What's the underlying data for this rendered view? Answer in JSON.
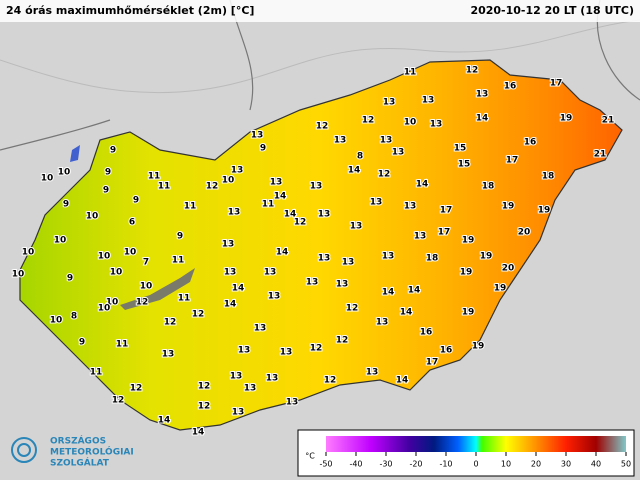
{
  "header": {
    "title": "24 órás maximumhőmérséklet (2m) [°C]",
    "timestamp": "2020-10-12 20 LT (18 UTC)"
  },
  "stations": [
    11,
    12,
    16,
    17,
    13,
    13,
    13,
    12,
    12,
    10,
    13,
    14,
    19,
    21,
    13,
    9,
    13,
    13,
    15,
    16,
    9,
    8,
    13,
    15,
    17,
    21,
    10,
    10,
    9,
    11,
    13,
    14,
    12,
    18,
    18,
    9,
    11,
    12,
    10,
    13,
    13,
    14,
    9,
    9,
    11,
    14,
    11,
    13,
    13,
    17,
    19,
    19,
    10,
    13,
    14,
    13,
    13,
    12,
    10,
    6,
    9,
    13,
    17,
    19,
    20,
    10,
    13,
    14,
    13,
    19,
    10,
    10,
    7,
    11,
    13,
    13,
    20,
    9,
    10,
    13,
    13,
    18,
    19,
    10,
    10,
    14,
    13,
    13,
    13,
    14,
    14,
    19,
    10,
    12,
    11,
    10,
    14,
    12,
    14,
    19,
    10,
    8,
    12,
    12,
    13,
    9,
    11,
    13,
    12,
    12,
    16,
    16,
    13,
    13,
    13,
    17,
    19,
    11,
    13,
    13,
    12,
    13,
    14,
    12,
    12,
    13,
    12,
    12,
    13,
    13,
    14,
    14
  ],
  "logo": [
    "ORSZÁGOS",
    "METEOROLÓGIAI",
    "SZOLGÁLAT"
  ],
  "legend": {
    "unit": "°C",
    "lim": [
      -50,
      50
    ],
    "ticks": [
      -50,
      -40,
      -30,
      -20,
      -10,
      0,
      10,
      20,
      30,
      40,
      50
    ]
  }
}
